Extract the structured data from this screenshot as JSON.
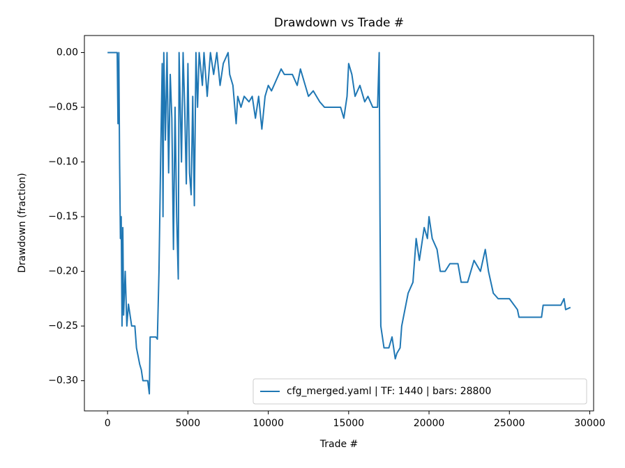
{
  "chart_data": {
    "type": "line",
    "title": "Drawdown vs Trade #",
    "x_label": "Trade #",
    "y_label": "Drawdown (fraction)",
    "xlim": [
      -1440,
      30240
    ],
    "ylim": [
      -0.3276,
      0.0156
    ],
    "xticks": [
      0,
      5000,
      10000,
      15000,
      20000,
      25000,
      30000
    ],
    "yticks": [
      {
        "value": 0,
        "label": "0.00"
      },
      {
        "value": -0.05,
        "label": "−0.05"
      },
      {
        "value": -0.1,
        "label": "−0.10"
      },
      {
        "value": -0.15,
        "label": "−0.15"
      },
      {
        "value": -0.2,
        "label": "−0.20"
      },
      {
        "value": -0.25,
        "label": "−0.25"
      },
      {
        "value": -0.3,
        "label": "−0.30"
      }
    ],
    "grid": false,
    "legend": "lower right",
    "x": [
      0,
      600,
      650,
      700,
      750,
      800,
      850,
      900,
      950,
      1000,
      1100,
      1200,
      1300,
      1500,
      1700,
      1800,
      2000,
      2100,
      2200,
      2500,
      2600,
      2650,
      3000,
      3100,
      3200,
      3300,
      3400,
      3450,
      3500,
      3600,
      3700,
      3800,
      3900,
      4000,
      4100,
      4200,
      4300,
      4400,
      4450,
      4600,
      4700,
      4800,
      4900,
      5000,
      5100,
      5200,
      5300,
      5400,
      5500,
      5600,
      5700,
      5900,
      6000,
      6200,
      6400,
      6600,
      6800,
      7000,
      7200,
      7500,
      7600,
      7800,
      8000,
      8100,
      8300,
      8500,
      8800,
      9000,
      9200,
      9400,
      9600,
      9800,
      10000,
      10200,
      10500,
      10800,
      11000,
      11500,
      11800,
      12000,
      12300,
      12500,
      12800,
      13000,
      13200,
      13500,
      14000,
      14500,
      14700,
      14900,
      15000,
      15200,
      15400,
      15700,
      16000,
      16200,
      16500,
      16800,
      16900,
      16950,
      17000,
      17200,
      17500,
      17700,
      17900,
      18000,
      18200,
      18300,
      18700,
      19000,
      19200,
      19400,
      19700,
      19900,
      20000,
      20200,
      20500,
      20700,
      21000,
      21300,
      21800,
      22000,
      22400,
      22800,
      23200,
      23500,
      23700,
      24000,
      24300,
      25000,
      25500,
      25600,
      27000,
      27100,
      28200,
      28400,
      28500,
      28800
    ],
    "series": [
      {
        "name": "cfg_merged.yaml | TF: 1440 | bars: 28800",
        "color": "#1f77b4",
        "values": [
          0,
          0,
          -0.065,
          0,
          -0.1,
          -0.17,
          -0.15,
          -0.25,
          -0.16,
          -0.24,
          -0.2,
          -0.25,
          -0.23,
          -0.25,
          -0.25,
          -0.27,
          -0.285,
          -0.29,
          -0.3,
          -0.3,
          -0.312,
          -0.26,
          -0.26,
          -0.262,
          -0.2,
          -0.1,
          -0.01,
          -0.15,
          0,
          -0.08,
          0,
          -0.11,
          -0.02,
          -0.06,
          -0.18,
          -0.05,
          -0.15,
          -0.207,
          0,
          -0.1,
          0,
          -0.05,
          -0.12,
          -0.01,
          -0.11,
          -0.13,
          -0.04,
          -0.14,
          0,
          -0.05,
          0,
          -0.03,
          0,
          -0.04,
          0,
          -0.02,
          0,
          -0.03,
          -0.01,
          0,
          -0.02,
          -0.03,
          -0.065,
          -0.04,
          -0.05,
          -0.04,
          -0.045,
          -0.04,
          -0.06,
          -0.04,
          -0.07,
          -0.04,
          -0.03,
          -0.035,
          -0.025,
          -0.015,
          -0.02,
          -0.02,
          -0.03,
          -0.015,
          -0.03,
          -0.04,
          -0.035,
          -0.04,
          -0.045,
          -0.05,
          -0.05,
          -0.05,
          -0.06,
          -0.04,
          -0.01,
          -0.02,
          -0.04,
          -0.03,
          -0.045,
          -0.04,
          -0.05,
          -0.05,
          0,
          -0.15,
          -0.25,
          -0.27,
          -0.27,
          -0.26,
          -0.28,
          -0.275,
          -0.27,
          -0.25,
          -0.22,
          -0.21,
          -0.17,
          -0.19,
          -0.16,
          -0.17,
          -0.15,
          -0.17,
          -0.18,
          -0.2,
          -0.2,
          -0.193,
          -0.193,
          -0.21,
          -0.21,
          -0.19,
          -0.2,
          -0.18,
          -0.2,
          -0.22,
          -0.225,
          -0.225,
          -0.235,
          -0.242,
          -0.242,
          -0.231,
          -0.231,
          -0.225,
          -0.235,
          -0.233
        ]
      }
    ]
  }
}
